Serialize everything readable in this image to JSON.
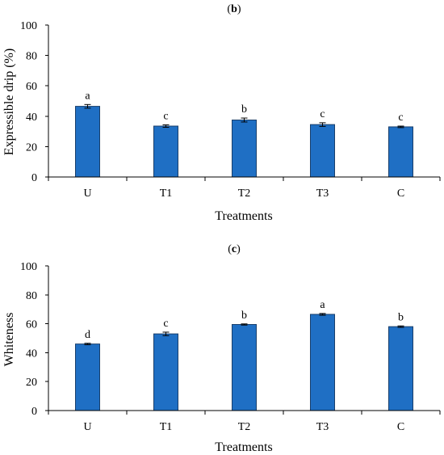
{
  "chart_data": [
    {
      "type": "bar",
      "title_open": "(",
      "title_letter": "b",
      "title_close": ")",
      "categories": [
        "U",
        "T1",
        "T2",
        "T3",
        "C"
      ],
      "values": [
        46.5,
        33.5,
        37.5,
        34.5,
        33.0
      ],
      "errors": [
        1.2,
        0.8,
        1.3,
        1.2,
        0.5
      ],
      "significance": [
        "a",
        "c",
        "b",
        "c",
        "c"
      ],
      "xlabel": "Treatments",
      "ylabel": "Expressible drip (%)",
      "ylim": [
        0,
        100
      ],
      "yticks": [
        0,
        20,
        40,
        60,
        80,
        100
      ],
      "color": "#1f6fc4"
    },
    {
      "type": "bar",
      "title_open": "(",
      "title_letter": "c",
      "title_close": ")",
      "categories": [
        "U",
        "T1",
        "T2",
        "T3",
        "C"
      ],
      "values": [
        46.0,
        53.0,
        59.5,
        66.5,
        58.0
      ],
      "errors": [
        0.5,
        1.2,
        0.4,
        0.6,
        0.5
      ],
      "significance": [
        "d",
        "c",
        "b",
        "a",
        "b"
      ],
      "xlabel": "Treatments",
      "ylabel": "Whiteness",
      "ylim": [
        0,
        100
      ],
      "yticks": [
        0,
        20,
        40,
        60,
        80,
        100
      ],
      "color": "#1f6fc4"
    }
  ]
}
